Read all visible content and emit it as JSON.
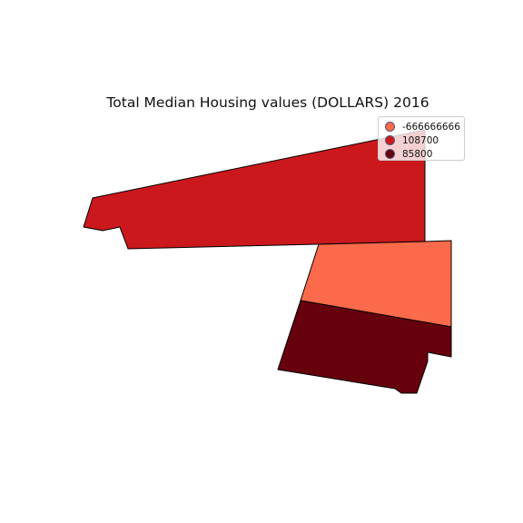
{
  "title": "Total Median Housing values (DOLLARS) 2016",
  "legend": [
    {
      "label": "-666666666",
      "color": "#fb6a4a"
    },
    {
      "label": "108700",
      "color": "#cb181d"
    },
    {
      "label": "85800",
      "color": "#67000d"
    }
  ],
  "regions": [
    {
      "value": "108700",
      "color": "#cb181d"
    },
    {
      "value": "-666666666",
      "color": "#fb6a4a"
    },
    {
      "value": "85800",
      "color": "#67000d"
    }
  ]
}
